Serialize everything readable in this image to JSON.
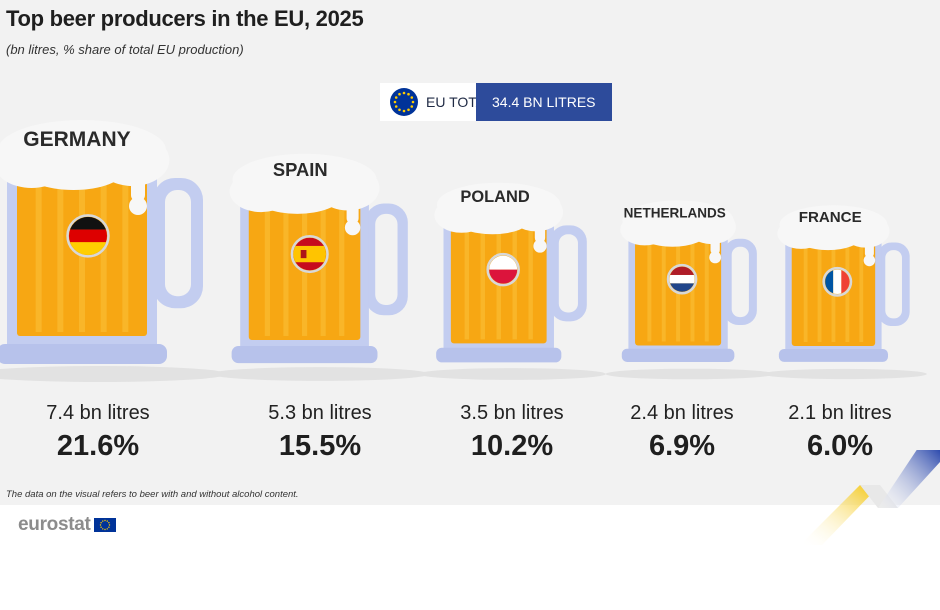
{
  "header": {
    "title": "Top beer producers in the EU, 2025",
    "subtitle": "(bn litres, % share of total EU production)"
  },
  "eu_total": {
    "label": "EU TOTAL",
    "value": "34.4 BN LITRES"
  },
  "chart_data": {
    "type": "bar",
    "title": "Top beer producers in the EU, 2025",
    "subtitle": "(bn litres, % share of total EU production)",
    "categories": [
      "GERMANY",
      "SPAIN",
      "POLAND",
      "NETHERLANDS",
      "FRANCE"
    ],
    "values": [
      7.4,
      5.3,
      3.5,
      2.4,
      2.1
    ],
    "value_labels": [
      "7.4 bn litres",
      "5.3 bn litres",
      "3.5 bn litres",
      "2.4 bn litres",
      "2.1 bn litres"
    ],
    "shares": [
      21.6,
      15.5,
      10.2,
      6.9,
      6.0
    ],
    "share_labels": [
      "21.6%",
      "15.5%",
      "10.2%",
      "6.9%",
      "6.0%"
    ],
    "flag_icons": [
      "germany-flag-icon",
      "spain-flag-icon",
      "poland-flag-icon",
      "netherlands-flag-icon",
      "france-flag-icon"
    ],
    "total": 34.4
  },
  "colors": {
    "beer": "#f7a713",
    "beer_stripe": "#fbc33c",
    "glass": "#c3cdf0",
    "foam": "#f7f7f7",
    "eu_blue": "#2d4b9b"
  },
  "footnote": "The data on the visual refers to beer with and without alcohol content.",
  "brand": {
    "name": "eurostat",
    "icon": "eu-flag-icon"
  }
}
